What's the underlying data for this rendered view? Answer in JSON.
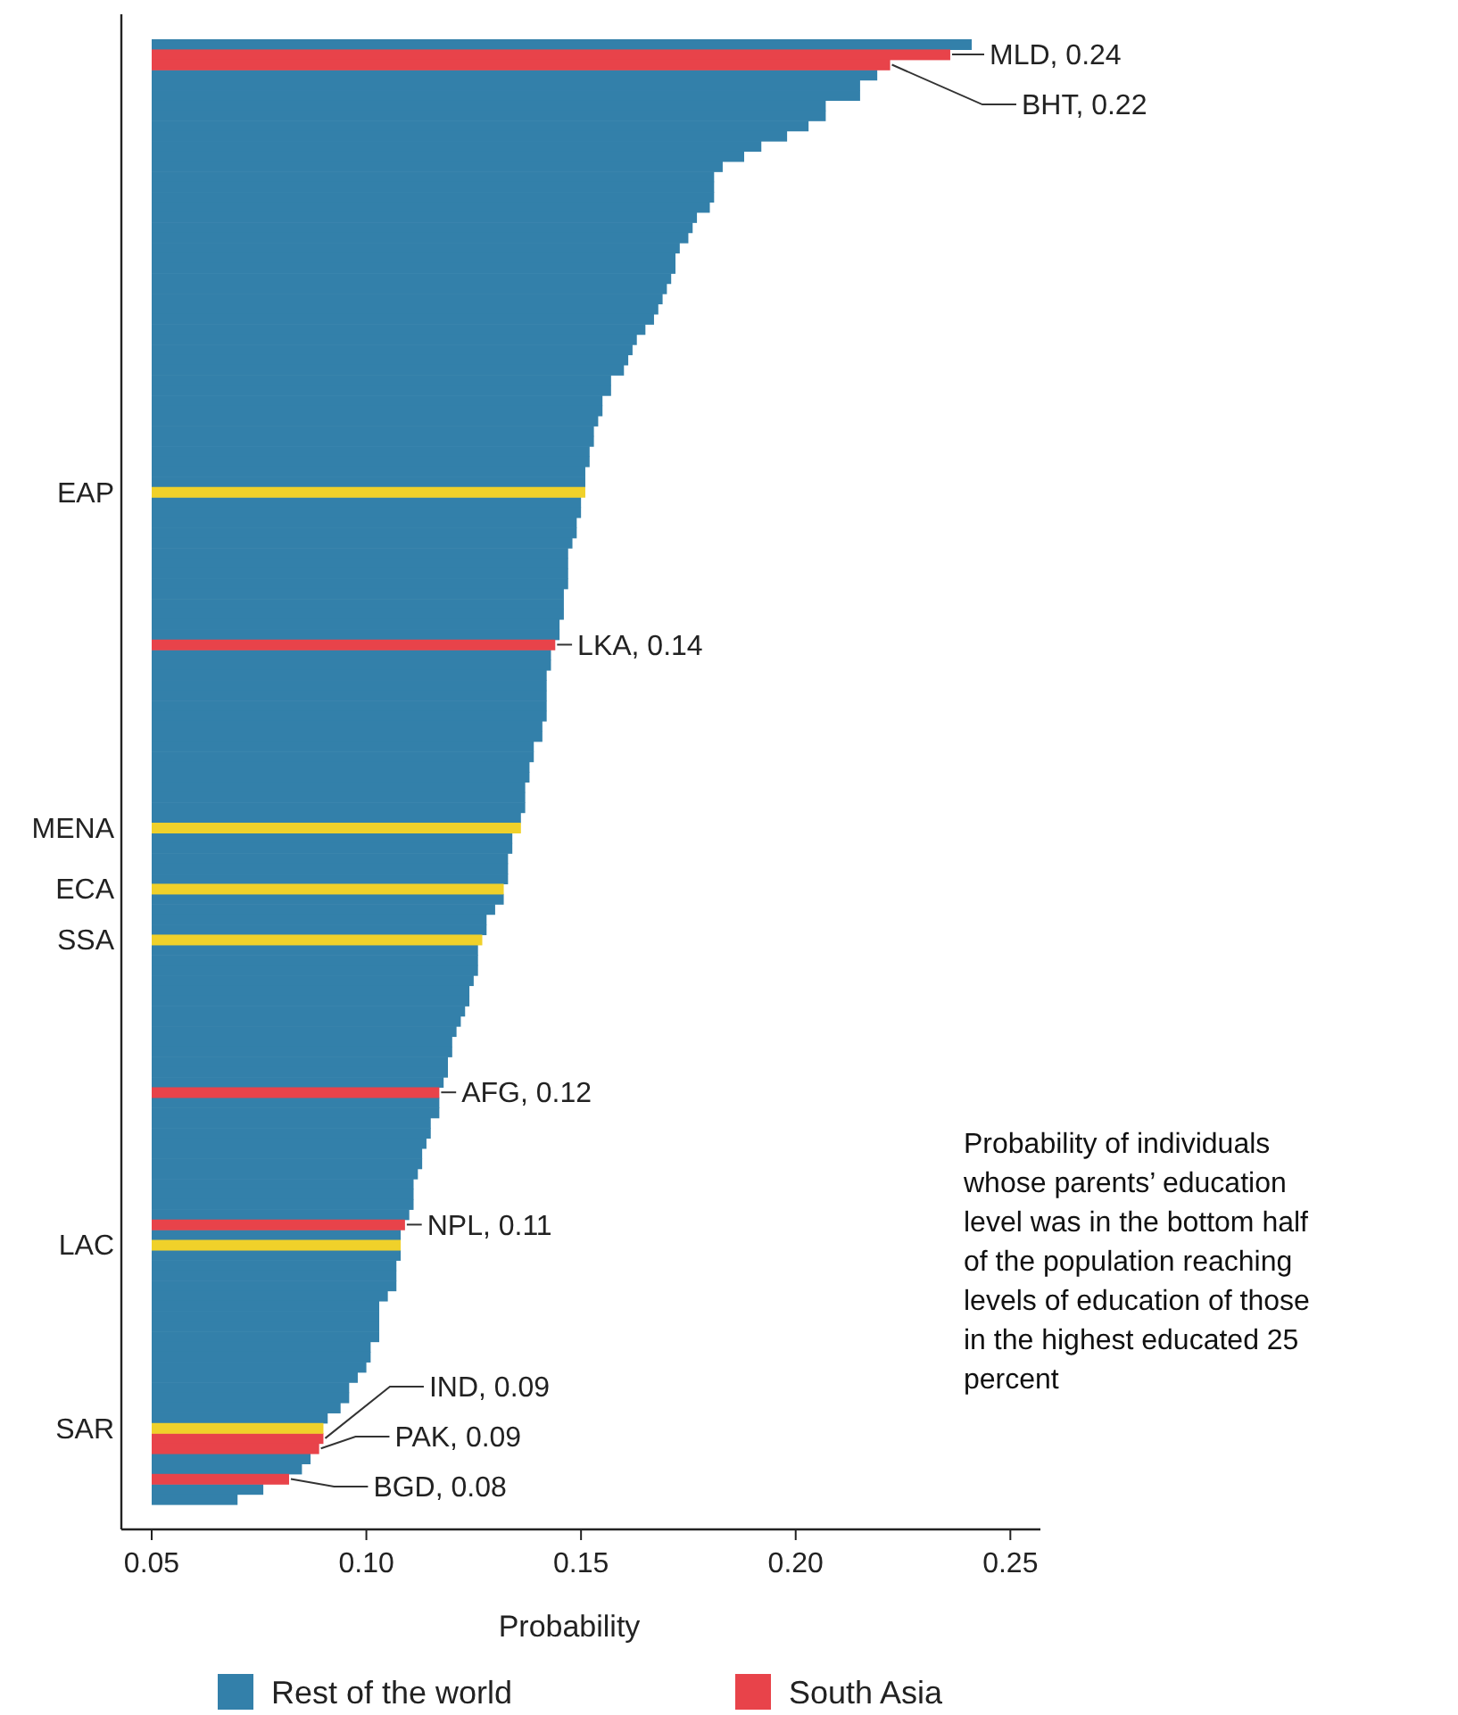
{
  "chart_data": {
    "type": "bar",
    "orientation": "horizontal",
    "xlabel": "Probability",
    "legend": "bottom",
    "xlim": [
      0.05,
      0.257
    ],
    "xticks": [
      0.05,
      {
        "value": 0.1,
        "label": "0.10"
      },
      0.15,
      {
        "value": 0.2,
        "label": "0.20"
      },
      0.25
    ],
    "categories": [
      null,
      null,
      null,
      null,
      null,
      null,
      null,
      null,
      null,
      null,
      null,
      null,
      null,
      null,
      null,
      null,
      null,
      null,
      null,
      null,
      null,
      null,
      null,
      null,
      null,
      null,
      null,
      null,
      null,
      null,
      null,
      null,
      null,
      null,
      null,
      null,
      null,
      null,
      null,
      null,
      null,
      null,
      null,
      null,
      "EAP",
      null,
      null,
      null,
      null,
      null,
      null,
      null,
      null,
      null,
      null,
      null,
      null,
      null,
      null,
      null,
      null,
      null,
      null,
      null,
      null,
      null,
      null,
      null,
      null,
      null,
      null,
      null,
      null,
      null,
      null,
      null,
      null,
      "MENA",
      null,
      null,
      null,
      null,
      null,
      "ECA",
      null,
      null,
      null,
      null,
      "SSA",
      null,
      null,
      null,
      null,
      null,
      null,
      null,
      null,
      null,
      null,
      null,
      null,
      null,
      null,
      null,
      null,
      null,
      null,
      null,
      null,
      null,
      null,
      null,
      null,
      null,
      null,
      null,
      null,
      null,
      "LAC",
      null,
      null,
      null,
      null,
      null,
      null,
      null,
      null,
      null,
      null,
      null,
      null,
      null,
      null,
      null,
      null,
      null,
      "SAR",
      null,
      null,
      null,
      null,
      null,
      null,
      null
    ],
    "series": [
      {
        "name": "Rest of the world",
        "color": "#3380aa",
        "values": [
          0.241,
          null,
          null,
          0.219,
          0.215,
          0.215,
          0.207,
          0.207,
          0.203,
          0.198,
          0.192,
          0.188,
          0.183,
          0.181,
          0.181,
          0.181,
          0.18,
          0.177,
          0.176,
          0.175,
          0.173,
          0.172,
          0.172,
          0.171,
          0.17,
          0.169,
          0.168,
          0.167,
          0.165,
          0.163,
          0.162,
          0.161,
          0.16,
          0.157,
          0.157,
          0.155,
          0.155,
          0.154,
          0.153,
          0.153,
          0.152,
          0.152,
          0.151,
          0.151,
          null,
          0.15,
          0.15,
          0.149,
          0.149,
          0.148,
          0.147,
          0.147,
          0.147,
          0.147,
          0.146,
          0.146,
          0.146,
          0.145,
          0.145,
          null,
          0.143,
          0.143,
          0.142,
          0.142,
          0.142,
          0.142,
          0.142,
          0.141,
          0.141,
          0.139,
          0.139,
          0.138,
          0.138,
          0.137,
          0.137,
          0.137,
          0.136,
          null,
          0.134,
          0.134,
          0.133,
          0.133,
          0.133,
          null,
          0.132,
          0.13,
          0.128,
          0.128,
          null,
          0.126,
          0.126,
          0.126,
          0.125,
          0.124,
          0.124,
          0.123,
          0.122,
          0.121,
          0.12,
          0.12,
          0.119,
          0.119,
          0.118,
          null,
          0.117,
          0.117,
          0.115,
          0.115,
          0.114,
          0.113,
          0.113,
          0.112,
          0.111,
          0.111,
          0.111,
          0.11,
          null,
          0.108,
          null,
          0.108,
          0.107,
          0.107,
          0.107,
          0.105,
          0.103,
          0.103,
          0.103,
          0.103,
          0.101,
          0.101,
          0.1,
          0.098,
          0.096,
          0.096,
          0.094,
          0.091,
          null,
          null,
          null,
          0.087,
          0.085,
          null,
          0.076,
          0.07
        ]
      },
      {
        "name": "South Asia",
        "color": "#e8434a",
        "values": [
          null,
          0.236,
          0.222,
          null,
          null,
          null,
          null,
          null,
          null,
          null,
          null,
          null,
          null,
          null,
          null,
          null,
          null,
          null,
          null,
          null,
          null,
          null,
          null,
          null,
          null,
          null,
          null,
          null,
          null,
          null,
          null,
          null,
          null,
          null,
          null,
          null,
          null,
          null,
          null,
          null,
          null,
          null,
          null,
          null,
          null,
          null,
          null,
          null,
          null,
          null,
          null,
          null,
          null,
          null,
          null,
          null,
          null,
          null,
          null,
          0.144,
          null,
          null,
          null,
          null,
          null,
          null,
          null,
          null,
          null,
          null,
          null,
          null,
          null,
          null,
          null,
          null,
          null,
          null,
          null,
          null,
          null,
          null,
          null,
          null,
          null,
          null,
          null,
          null,
          null,
          null,
          null,
          null,
          null,
          null,
          null,
          null,
          null,
          null,
          null,
          null,
          null,
          null,
          null,
          0.117,
          null,
          null,
          null,
          null,
          null,
          null,
          null,
          null,
          null,
          null,
          null,
          null,
          0.109,
          null,
          null,
          null,
          null,
          null,
          null,
          null,
          null,
          null,
          null,
          null,
          null,
          null,
          null,
          null,
          null,
          null,
          null,
          null,
          null,
          0.09,
          0.089,
          null,
          null,
          0.082,
          null,
          null
        ],
        "value_labels": [
          null,
          "MLD, 0.24",
          "BHT, 0.22",
          null,
          null,
          null,
          null,
          null,
          null,
          null,
          null,
          null,
          null,
          null,
          null,
          null,
          null,
          null,
          null,
          null,
          null,
          null,
          null,
          null,
          null,
          null,
          null,
          null,
          null,
          null,
          null,
          null,
          null,
          null,
          null,
          null,
          null,
          null,
          null,
          null,
          null,
          null,
          null,
          null,
          null,
          null,
          null,
          null,
          null,
          null,
          null,
          null,
          null,
          null,
          null,
          null,
          null,
          null,
          null,
          "LKA, 0.14",
          null,
          null,
          null,
          null,
          null,
          null,
          null,
          null,
          null,
          null,
          null,
          null,
          null,
          null,
          null,
          null,
          null,
          null,
          null,
          null,
          null,
          null,
          null,
          null,
          null,
          null,
          null,
          null,
          null,
          null,
          null,
          null,
          null,
          null,
          null,
          null,
          null,
          null,
          null,
          null,
          null,
          null,
          null,
          "AFG, 0.12",
          null,
          null,
          null,
          null,
          null,
          null,
          null,
          null,
          null,
          null,
          null,
          null,
          "NPL, 0.11",
          null,
          null,
          null,
          null,
          null,
          null,
          null,
          null,
          null,
          null,
          null,
          null,
          null,
          null,
          null,
          null,
          null,
          null,
          null,
          null,
          "IND, 0.09",
          "PAK, 0.09",
          null,
          null,
          "BGD, 0.08",
          null,
          null
        ]
      },
      {
        "color": "#f0d12a",
        "values": [
          null,
          null,
          null,
          null,
          null,
          null,
          null,
          null,
          null,
          null,
          null,
          null,
          null,
          null,
          null,
          null,
          null,
          null,
          null,
          null,
          null,
          null,
          null,
          null,
          null,
          null,
          null,
          null,
          null,
          null,
          null,
          null,
          null,
          null,
          null,
          null,
          null,
          null,
          null,
          null,
          null,
          null,
          null,
          null,
          0.151,
          null,
          null,
          null,
          null,
          null,
          null,
          null,
          null,
          null,
          null,
          null,
          null,
          null,
          null,
          null,
          null,
          null,
          null,
          null,
          null,
          null,
          null,
          null,
          null,
          null,
          null,
          null,
          null,
          null,
          null,
          null,
          null,
          0.136,
          null,
          null,
          null,
          null,
          null,
          0.132,
          null,
          null,
          null,
          null,
          0.127,
          null,
          null,
          null,
          null,
          null,
          null,
          null,
          null,
          null,
          null,
          null,
          null,
          null,
          null,
          null,
          null,
          null,
          null,
          null,
          null,
          null,
          null,
          null,
          null,
          null,
          null,
          null,
          null,
          null,
          0.108,
          null,
          null,
          null,
          null,
          null,
          null,
          null,
          null,
          null,
          null,
          null,
          null,
          null,
          null,
          null,
          null,
          null,
          0.09,
          null,
          null,
          null,
          null,
          null,
          null,
          null
        ]
      }
    ],
    "annotations": [
      "Probability of individuals whose parents’ education level was in the bottom half of the population reaching levels of education of those in the highest educated 25 percent"
    ]
  }
}
